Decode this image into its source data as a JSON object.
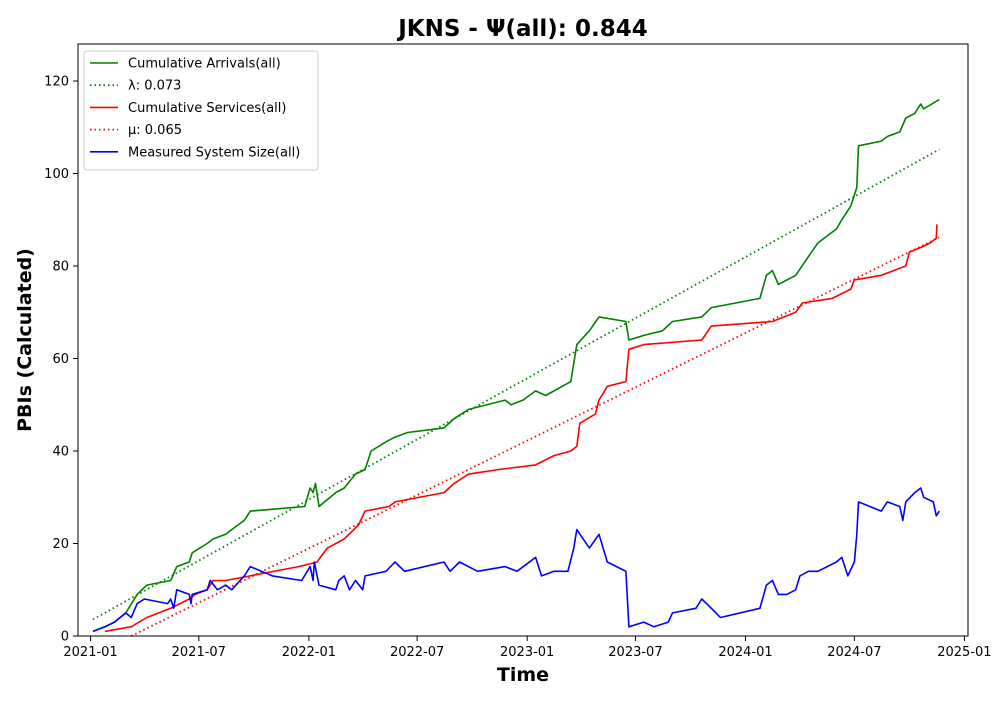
{
  "chart_data": {
    "type": "line",
    "title": "JKNS -  Ψ(all): 0.844",
    "xlabel": "Time",
    "ylabel": "PBIs (Calculated)",
    "xlim": [
      "2020-12-11",
      "2025-01-07"
    ],
    "ylim": [
      0,
      128
    ],
    "grid": false,
    "legend_position": "top-left",
    "x_ticks": [
      "2021-01",
      "2021-07",
      "2022-01",
      "2022-07",
      "2023-01",
      "2023-07",
      "2024-01",
      "2024-07",
      "2025-01"
    ],
    "y_ticks": [
      "0",
      "20",
      "40",
      "60",
      "80",
      "100",
      "120"
    ],
    "series": [
      {
        "name": "Cumulative Arrivals(all)",
        "color": "#008000",
        "style": "solid",
        "points": [
          [
            "2021-01-05",
            1
          ],
          [
            "2021-01-25",
            2
          ],
          [
            "2021-02-10",
            3
          ],
          [
            "2021-03-01",
            5
          ],
          [
            "2021-03-20",
            9
          ],
          [
            "2021-04-05",
            11
          ],
          [
            "2021-05-15",
            12
          ],
          [
            "2021-05-25",
            15
          ],
          [
            "2021-06-15",
            16
          ],
          [
            "2021-06-20",
            18
          ],
          [
            "2021-07-15",
            20
          ],
          [
            "2021-07-25",
            21
          ],
          [
            "2021-08-15",
            22
          ],
          [
            "2021-08-25",
            23
          ],
          [
            "2021-09-15",
            25
          ],
          [
            "2021-09-25",
            27
          ],
          [
            "2021-12-25",
            28
          ],
          [
            "2022-01-03",
            32
          ],
          [
            "2022-01-08",
            31
          ],
          [
            "2022-01-12",
            33
          ],
          [
            "2022-01-18",
            28
          ],
          [
            "2022-02-15",
            31
          ],
          [
            "2022-03-01",
            32
          ],
          [
            "2022-03-20",
            35
          ],
          [
            "2022-04-05",
            36
          ],
          [
            "2022-04-15",
            40
          ],
          [
            "2022-05-10",
            42
          ],
          [
            "2022-05-25",
            43
          ],
          [
            "2022-06-15",
            44
          ],
          [
            "2022-08-15",
            45
          ],
          [
            "2022-09-01",
            47
          ],
          [
            "2022-09-25",
            49
          ],
          [
            "2022-11-25",
            51
          ],
          [
            "2022-12-05",
            50
          ],
          [
            "2022-12-25",
            51
          ],
          [
            "2023-01-15",
            53
          ],
          [
            "2023-02-01",
            52
          ],
          [
            "2023-03-15",
            55
          ],
          [
            "2023-03-25",
            63
          ],
          [
            "2023-04-15",
            66
          ],
          [
            "2023-05-01",
            69
          ],
          [
            "2023-06-15",
            68
          ],
          [
            "2023-06-20",
            64
          ],
          [
            "2023-07-15",
            65
          ],
          [
            "2023-08-15",
            66
          ],
          [
            "2023-09-01",
            68
          ],
          [
            "2023-10-20",
            69
          ],
          [
            "2023-11-05",
            71
          ],
          [
            "2024-01-25",
            73
          ],
          [
            "2024-02-05",
            78
          ],
          [
            "2024-02-15",
            79
          ],
          [
            "2024-02-25",
            76
          ],
          [
            "2024-03-25",
            78
          ],
          [
            "2024-04-15",
            82
          ],
          [
            "2024-05-01",
            85
          ],
          [
            "2024-06-01",
            88
          ],
          [
            "2024-06-10",
            90
          ],
          [
            "2024-06-25",
            93
          ],
          [
            "2024-07-05",
            97
          ],
          [
            "2024-07-08",
            106
          ],
          [
            "2024-08-15",
            107
          ],
          [
            "2024-08-25",
            108
          ],
          [
            "2024-09-15",
            109
          ],
          [
            "2024-09-25",
            112
          ],
          [
            "2024-10-10",
            113
          ],
          [
            "2024-10-20",
            115
          ],
          [
            "2024-10-25",
            114
          ],
          [
            "2024-11-20",
            116
          ]
        ]
      },
      {
        "name": "λ: 0.073",
        "color": "#008000",
        "style": "dotted",
        "points": [
          [
            "2021-01-05",
            3.6
          ],
          [
            "2024-11-20",
            105.2
          ]
        ]
      },
      {
        "name": "Cumulative Services(all)",
        "color": "#ff0000",
        "style": "solid",
        "points": [
          [
            "2021-01-25",
            1
          ],
          [
            "2021-03-10",
            2
          ],
          [
            "2021-04-05",
            4
          ],
          [
            "2021-05-15",
            6
          ],
          [
            "2021-06-15",
            8
          ],
          [
            "2021-06-25",
            9
          ],
          [
            "2021-07-15",
            10
          ],
          [
            "2021-07-25",
            12
          ],
          [
            "2021-08-15",
            12
          ],
          [
            "2021-12-15",
            15
          ],
          [
            "2022-01-15",
            16
          ],
          [
            "2022-01-20",
            17
          ],
          [
            "2022-02-01",
            19
          ],
          [
            "2022-03-01",
            21
          ],
          [
            "2022-03-25",
            24
          ],
          [
            "2022-04-05",
            27
          ],
          [
            "2022-05-15",
            28
          ],
          [
            "2022-05-25",
            29
          ],
          [
            "2022-08-15",
            31
          ],
          [
            "2022-09-01",
            33
          ],
          [
            "2022-09-25",
            35
          ],
          [
            "2022-11-15",
            36
          ],
          [
            "2023-01-15",
            37
          ],
          [
            "2023-02-15",
            39
          ],
          [
            "2023-03-15",
            40
          ],
          [
            "2023-03-25",
            41
          ],
          [
            "2023-03-30",
            46
          ],
          [
            "2023-04-25",
            48
          ],
          [
            "2023-05-01",
            51
          ],
          [
            "2023-05-15",
            54
          ],
          [
            "2023-06-15",
            55
          ],
          [
            "2023-06-20",
            62
          ],
          [
            "2023-07-15",
            63
          ],
          [
            "2023-10-20",
            64
          ],
          [
            "2023-11-05",
            67
          ],
          [
            "2024-02-15",
            68
          ],
          [
            "2024-03-25",
            70
          ],
          [
            "2024-04-05",
            72
          ],
          [
            "2024-05-25",
            73
          ],
          [
            "2024-06-25",
            75
          ],
          [
            "2024-07-01",
            77
          ],
          [
            "2024-08-15",
            78
          ],
          [
            "2024-09-25",
            80
          ],
          [
            "2024-10-01",
            83
          ],
          [
            "2024-10-20",
            84
          ],
          [
            "2024-11-05",
            85
          ],
          [
            "2024-11-15",
            86
          ],
          [
            "2024-11-16",
            89
          ]
        ]
      },
      {
        "name": "μ: 0.065",
        "color": "#ff0000",
        "style": "dotted",
        "points": [
          [
            "2021-03-10",
            0
          ],
          [
            "2024-11-20",
            86.2
          ]
        ]
      },
      {
        "name": "Measured System Size(all)",
        "color": "#0000ff",
        "style": "solid",
        "points": [
          [
            "2021-01-05",
            1
          ],
          [
            "2021-01-25",
            2
          ],
          [
            "2021-02-10",
            3
          ],
          [
            "2021-03-01",
            5
          ],
          [
            "2021-03-10",
            4
          ],
          [
            "2021-03-20",
            7
          ],
          [
            "2021-04-01",
            8
          ],
          [
            "2021-05-10",
            7
          ],
          [
            "2021-05-15",
            8
          ],
          [
            "2021-05-20",
            6
          ],
          [
            "2021-05-25",
            10
          ],
          [
            "2021-06-15",
            9
          ],
          [
            "2021-06-18",
            7
          ],
          [
            "2021-06-20",
            9
          ],
          [
            "2021-07-15",
            10
          ],
          [
            "2021-07-20",
            12
          ],
          [
            "2021-08-01",
            10
          ],
          [
            "2021-08-15",
            11
          ],
          [
            "2021-08-25",
            10
          ],
          [
            "2021-09-15",
            13
          ],
          [
            "2021-09-25",
            15
          ],
          [
            "2021-11-01",
            13
          ],
          [
            "2021-12-20",
            12
          ],
          [
            "2022-01-03",
            15
          ],
          [
            "2022-01-08",
            12
          ],
          [
            "2022-01-10",
            16
          ],
          [
            "2022-01-18",
            11
          ],
          [
            "2022-02-15",
            10
          ],
          [
            "2022-02-20",
            12
          ],
          [
            "2022-03-01",
            13
          ],
          [
            "2022-03-10",
            10
          ],
          [
            "2022-03-20",
            12
          ],
          [
            "2022-04-01",
            10
          ],
          [
            "2022-04-05",
            13
          ],
          [
            "2022-05-10",
            14
          ],
          [
            "2022-05-25",
            16
          ],
          [
            "2022-06-10",
            14
          ],
          [
            "2022-08-15",
            16
          ],
          [
            "2022-08-25",
            14
          ],
          [
            "2022-09-10",
            16
          ],
          [
            "2022-10-10",
            14
          ],
          [
            "2022-11-25",
            15
          ],
          [
            "2022-12-15",
            14
          ],
          [
            "2023-01-15",
            17
          ],
          [
            "2023-01-25",
            13
          ],
          [
            "2023-02-15",
            14
          ],
          [
            "2023-03-10",
            14
          ],
          [
            "2023-03-20",
            19
          ],
          [
            "2023-03-25",
            23
          ],
          [
            "2023-04-15",
            19
          ],
          [
            "2023-05-01",
            22
          ],
          [
            "2023-05-15",
            16
          ],
          [
            "2023-06-15",
            14
          ],
          [
            "2023-06-20",
            2
          ],
          [
            "2023-07-15",
            3
          ],
          [
            "2023-08-01",
            2
          ],
          [
            "2023-08-25",
            3
          ],
          [
            "2023-09-01",
            5
          ],
          [
            "2023-10-10",
            6
          ],
          [
            "2023-10-20",
            8
          ],
          [
            "2023-11-05",
            6
          ],
          [
            "2023-11-20",
            4
          ],
          [
            "2024-01-25",
            6
          ],
          [
            "2024-02-05",
            11
          ],
          [
            "2024-02-15",
            12
          ],
          [
            "2024-02-25",
            9
          ],
          [
            "2024-03-10",
            9
          ],
          [
            "2024-03-25",
            10
          ],
          [
            "2024-04-01",
            13
          ],
          [
            "2024-04-15",
            14
          ],
          [
            "2024-05-01",
            14
          ],
          [
            "2024-06-01",
            16
          ],
          [
            "2024-06-10",
            17
          ],
          [
            "2024-06-20",
            13
          ],
          [
            "2024-07-01",
            16
          ],
          [
            "2024-07-05",
            22
          ],
          [
            "2024-07-08",
            29
          ],
          [
            "2024-08-15",
            27
          ],
          [
            "2024-08-25",
            29
          ],
          [
            "2024-09-15",
            28
          ],
          [
            "2024-09-20",
            25
          ],
          [
            "2024-09-25",
            29
          ],
          [
            "2024-10-10",
            31
          ],
          [
            "2024-10-20",
            32
          ],
          [
            "2024-10-25",
            30
          ],
          [
            "2024-11-10",
            29
          ],
          [
            "2024-11-15",
            26
          ],
          [
            "2024-11-20",
            27
          ]
        ]
      }
    ]
  }
}
